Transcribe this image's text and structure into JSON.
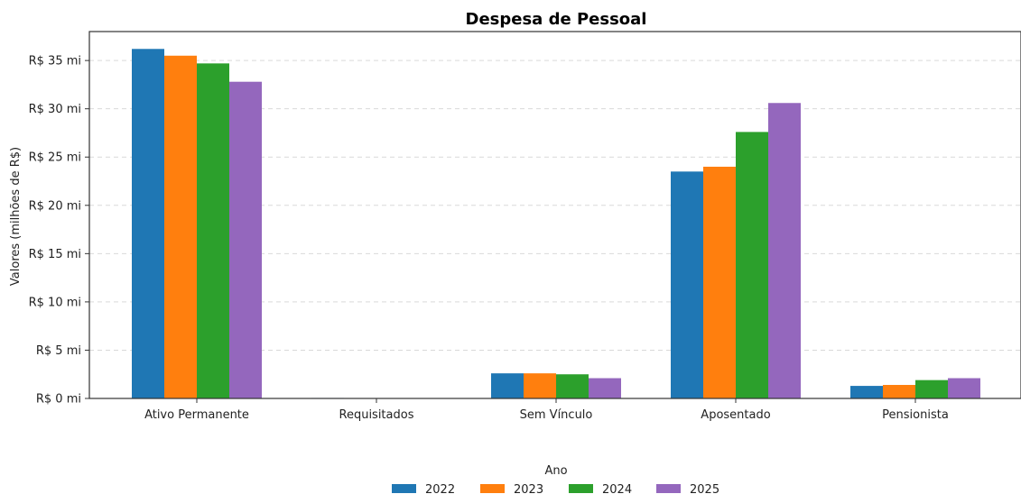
{
  "chart_data": {
    "type": "bar",
    "title": "Despesa de Pessoal",
    "xlabel": "",
    "ylabel": "Valores (milhões de R$)",
    "categories": [
      "Ativo Permanente",
      "Requisitados",
      "Sem Vínculo",
      "Aposentado",
      "Pensionista"
    ],
    "series": [
      {
        "name": "2022",
        "color": "#1f77b4",
        "values": [
          36.2,
          0.05,
          2.6,
          23.5,
          1.3
        ]
      },
      {
        "name": "2023",
        "color": "#ff7f0e",
        "values": [
          35.5,
          0.0,
          2.6,
          24.0,
          1.4
        ]
      },
      {
        "name": "2024",
        "color": "#2ca02c",
        "values": [
          34.7,
          0.0,
          2.5,
          27.6,
          1.9
        ]
      },
      {
        "name": "2025",
        "color": "#9467bd",
        "values": [
          32.8,
          0.0,
          2.1,
          30.6,
          2.1
        ]
      }
    ],
    "ylim": [
      0,
      38
    ],
    "yticks": [
      0,
      5,
      10,
      15,
      20,
      25,
      30,
      35
    ],
    "ytick_labels": [
      "R$ 0 mi",
      "R$ 5 mi",
      "R$ 10 mi",
      "R$ 15 mi",
      "R$ 20 mi",
      "R$ 25 mi",
      "R$ 30 mi",
      "R$ 35 mi"
    ],
    "grid": "y",
    "legend": {
      "title": "Ano",
      "placement": "bottom-center"
    }
  }
}
